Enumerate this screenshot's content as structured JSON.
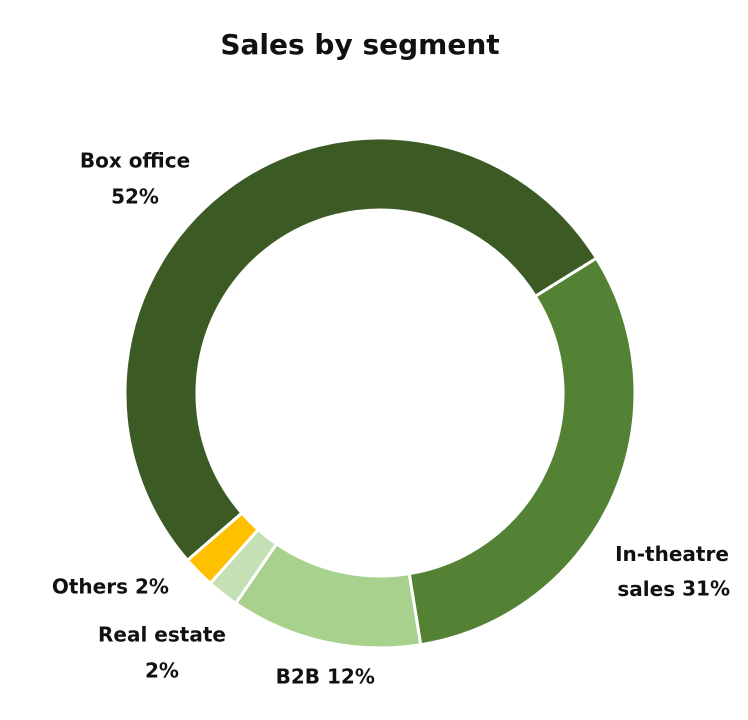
{
  "chart_data": {
    "type": "donut",
    "title": "Sales by segment",
    "categories": [
      "Box office",
      "In-theatre sales",
      "B2B",
      "Real estate",
      "Others"
    ],
    "values": [
      52,
      31,
      12,
      2,
      2
    ],
    "value_labels": [
      "52%",
      "31%",
      "12%",
      "2%",
      "2%"
    ],
    "colors": [
      "#3b5a24",
      "#548235",
      "#a9d18e",
      "#c5e0b4",
      "#ffc000"
    ]
  }
}
